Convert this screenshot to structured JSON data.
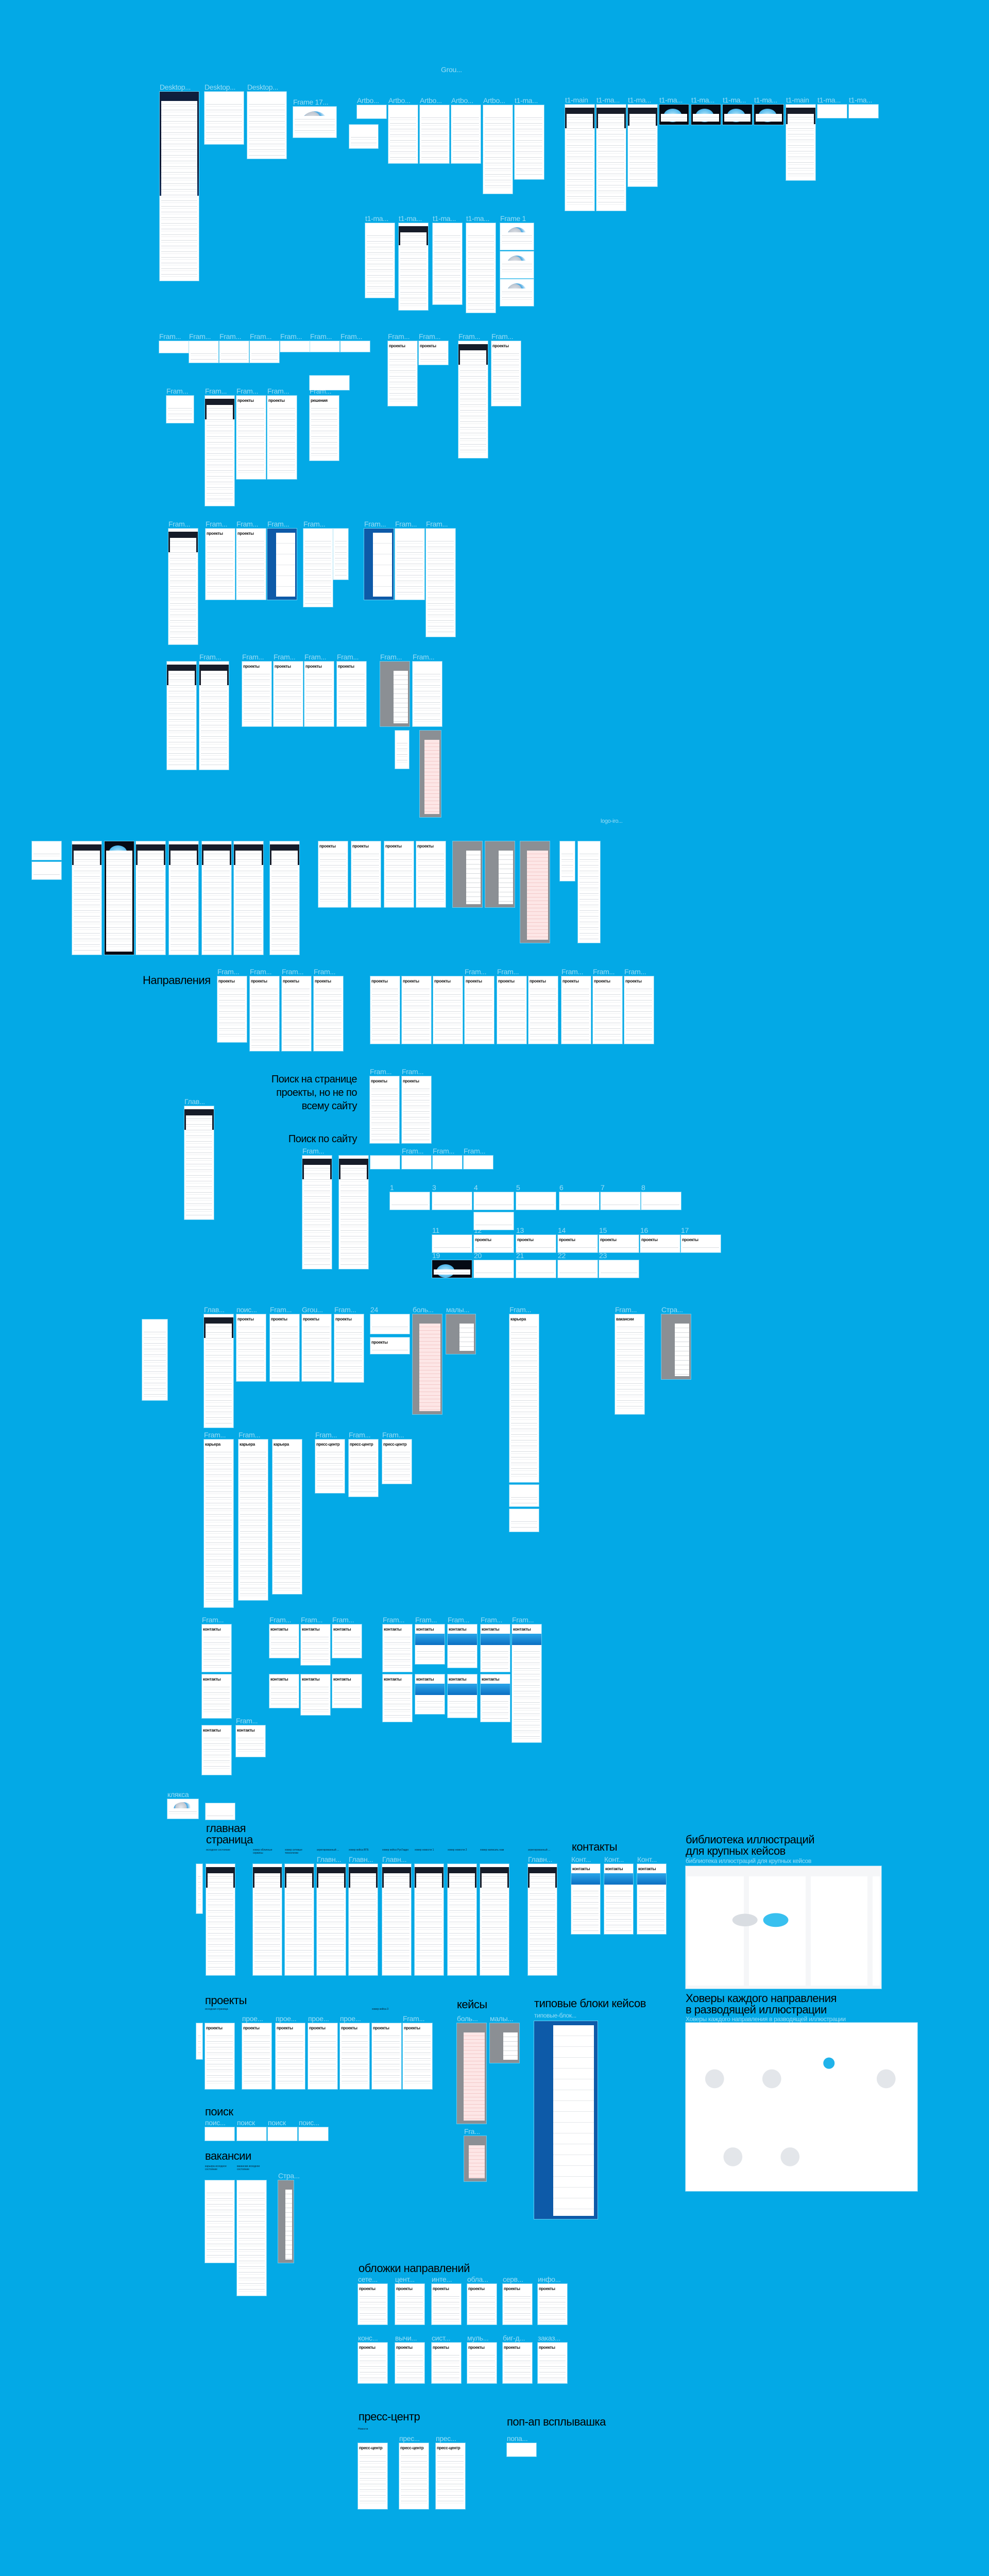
{
  "colors": {
    "canvas": "#03a9e6",
    "frame": "#ffffff",
    "accent": "#1fb0ec",
    "dark": "#0a1733"
  },
  "sections": {
    "directions": "Направления",
    "search_projects": [
      "Поиск на странице",
      "проекты, но не по",
      "всему сайту"
    ],
    "search_site": "Поиск по сайту",
    "home": [
      "главная",
      "страница"
    ],
    "contacts": "контакты",
    "library": [
      "библиотека иллюстраций",
      "для крупных кейсов"
    ],
    "library_frame": "библиотека иллюстраций для крупных кейсов",
    "hovers": [
      "Ховеры каждого направления",
      "в разводящей иллюстрации"
    ],
    "hovers_frame": "Ховеры каждого направления в разводящей иллюстрации",
    "projects": "проекты",
    "cases": "кейсы",
    "case_blocks": "типовые блоки кейсов",
    "case_blocks_frame": "типовые-блок...",
    "search": "поиск",
    "vacancies": "вакансии",
    "covers": "обложки направлений",
    "press": "пресс-центр",
    "popup": "поп-ап всплывашка",
    "group_label": "Grou...",
    "logo_label": "logo-iro..."
  },
  "frames": {
    "top": [
      {
        "label": "Desktop..."
      },
      {
        "label": "Desktop..."
      },
      {
        "label": "Desktop..."
      },
      {
        "label": "Frame 17..."
      },
      {
        "label": "Artbo..."
      },
      {
        "label": "Artbo..."
      },
      {
        "label": "Artbo..."
      },
      {
        "label": "Artbo..."
      },
      {
        "label": "Artbo..."
      },
      {
        "label": "t1-ma..."
      },
      {
        "label": "t1-main"
      },
      {
        "label": "t1-ma..."
      },
      {
        "label": "t1-ma..."
      },
      {
        "label": "t1-ma..."
      },
      {
        "label": "t1-ma..."
      },
      {
        "label": "t1-ma..."
      },
      {
        "label": "t1-ma..."
      },
      {
        "label": "t1-main"
      },
      {
        "label": "t1-ma..."
      },
      {
        "label": "t1-ma..."
      },
      {
        "label": ""
      }
    ],
    "row2": [
      {
        "label": "t1-ma..."
      },
      {
        "label": "t1-ma..."
      },
      {
        "label": "t1-ma..."
      },
      {
        "label": "t1-ma..."
      },
      {
        "label": "Frame 1"
      },
      {
        "label": ""
      },
      {
        "label": ""
      }
    ],
    "row3": [
      {
        "label": "Fram..."
      },
      {
        "label": "Fram..."
      },
      {
        "label": "Fram..."
      },
      {
        "label": "Fram..."
      },
      {
        "label": "Fram..."
      },
      {
        "label": "Fram..."
      },
      {
        "label": "Fram..."
      },
      {
        "label": "Fram...",
        "title": "проекты"
      },
      {
        "label": "Fram...",
        "title": "проекты"
      },
      {
        "label": "Fram..."
      },
      {
        "label": "Fram...",
        "title": "проекты"
      }
    ],
    "row4": [
      {
        "label": "Fram..."
      },
      {
        "label": "Fram..."
      },
      {
        "label": "Fram...",
        "title": "проекты"
      },
      {
        "label": "Fram...",
        "title": "проекты"
      },
      {
        "label": ""
      },
      {
        "label": "Fram...",
        "title": "решения"
      }
    ],
    "row5": [
      {
        "label": "Fram..."
      },
      {
        "label": "Fram...",
        "title": "проекты"
      },
      {
        "label": "Fram...",
        "title": "проекты"
      },
      {
        "label": "Fram..."
      },
      {
        "label": "Fram..."
      },
      {
        "label": ""
      },
      {
        "label": "Fram..."
      },
      {
        "label": "Fram..."
      },
      {
        "label": "Fram..."
      }
    ],
    "row6": [
      {
        "label": ""
      },
      {
        "label": "Fram..."
      },
      {
        "label": "Fram...",
        "title": "проекты"
      },
      {
        "label": "Fram...",
        "title": "проекты"
      },
      {
        "label": "Fram...",
        "title": "проекты"
      },
      {
        "label": "Fram...",
        "title": "проекты"
      },
      {
        "label": "Fram..."
      },
      {
        "label": "Fram..."
      },
      {
        "label": ""
      },
      {
        "label": ""
      }
    ],
    "row7": [
      {
        "label": ""
      },
      {
        "label": ""
      },
      {
        "label": ""
      },
      {
        "label": ""
      },
      {
        "label": ""
      },
      {
        "label": ""
      },
      {
        "label": ""
      },
      {
        "label": ""
      },
      {
        "label": ""
      },
      {
        "label": "",
        "title": "проекты"
      },
      {
        "label": "",
        "title": "проекты"
      },
      {
        "label": "",
        "title": "проекты"
      },
      {
        "label": "",
        "title": "проекты"
      },
      {
        "label": ""
      },
      {
        "label": ""
      },
      {
        "label": ""
      },
      {
        "label": ""
      },
      {
        "label": ""
      }
    ],
    "directions": [
      {
        "label": "Fram...",
        "title": "проекты"
      },
      {
        "label": "Fram...",
        "title": "проекты"
      },
      {
        "label": "Fram...",
        "title": "проекты"
      },
      {
        "label": "Fram...",
        "title": "проекты"
      },
      {
        "label": "",
        "title": "проекты"
      },
      {
        "label": "",
        "title": "проекты"
      },
      {
        "label": "",
        "title": "проекты"
      },
      {
        "label": "Fram...",
        "title": "проекты"
      },
      {
        "label": "Fram...",
        "title": "проекты"
      },
      {
        "label": "",
        "title": "проекты"
      },
      {
        "label": "Fram...",
        "title": "проекты"
      },
      {
        "label": "Fram...",
        "title": "проекты"
      },
      {
        "label": "Fram...",
        "title": "проекты"
      }
    ],
    "search_projects": [
      {
        "label": "Fram...",
        "title": "проекты"
      },
      {
        "label": "Fram...",
        "title": "проекты"
      },
      {
        "label": "Глав..."
      }
    ],
    "search_site": [
      {
        "label": "Fram..."
      },
      {
        "label": ""
      },
      {
        "label": ""
      },
      {
        "label": "Fram..."
      },
      {
        "label": "Fram..."
      },
      {
        "label": "Fram..."
      }
    ],
    "numbered": [
      {
        "label": "1"
      },
      {
        "label": "3"
      },
      {
        "label": "4"
      },
      {
        "label": "5"
      },
      {
        "label": "6"
      },
      {
        "label": "7"
      },
      {
        "label": "8"
      },
      {
        "label": ""
      },
      {
        "label": "11"
      },
      {
        "label": "12",
        "title": "проекты"
      },
      {
        "label": "13",
        "title": "проекты"
      },
      {
        "label": "14",
        "title": "проекты"
      },
      {
        "label": "15",
        "title": "проекты"
      },
      {
        "label": "16",
        "title": "проекты"
      },
      {
        "label": "17",
        "title": "проекты"
      },
      {
        "label": "19"
      },
      {
        "label": "20"
      },
      {
        "label": "21"
      },
      {
        "label": "22"
      },
      {
        "label": "23"
      }
    ],
    "row8": [
      {
        "label": ""
      },
      {
        "label": "Глав..."
      },
      {
        "label": "поис...",
        "title": "проекты"
      },
      {
        "label": "Fram...",
        "title": "проекты"
      },
      {
        "label": "Grou...",
        "title": "проекты"
      },
      {
        "label": "Fram...",
        "title": "проекты"
      },
      {
        "label": "24"
      },
      {
        "label": "",
        "title": "проекты"
      },
      {
        "label": "боль..."
      },
      {
        "label": "малы..."
      },
      {
        "label": "Fram...",
        "title": "карьера"
      },
      {
        "label": "Fram...",
        "title": "вакансии"
      },
      {
        "label": "Стра..."
      }
    ],
    "row9": [
      {
        "label": "Fram...",
        "title": "карьера"
      },
      {
        "label": "Fram...",
        "title": "карьера"
      },
      {
        "label": "",
        "title": "карьера"
      },
      {
        "label": "Fram...",
        "title": "пресс-центр"
      },
      {
        "label": "Fram...",
        "title": "пресс-центр"
      },
      {
        "label": "Fram...",
        "title": "пресс-центр"
      },
      {
        "label": ""
      },
      {
        "label": ""
      }
    ],
    "contacts_rows": [
      {
        "label": "Fram...",
        "title": "контакты"
      },
      {
        "label": "Fram...",
        "title": "контакты"
      },
      {
        "label": "Fram...",
        "title": "контакты"
      },
      {
        "label": "Fram...",
        "title": "контакты"
      },
      {
        "label": "Fram...",
        "title": "контакты"
      },
      {
        "label": "Fram...",
        "title": "контакты"
      },
      {
        "label": "Fram...",
        "title": "контакты"
      },
      {
        "label": "Fram...",
        "title": "контакты"
      },
      {
        "label": "Fram...",
        "title": "контакты"
      },
      {
        "label": "",
        "title": "контакты"
      },
      {
        "label": "",
        "title": "контакты"
      },
      {
        "label": "",
        "title": "контакты"
      },
      {
        "label": "",
        "title": "контакты"
      },
      {
        "label": "",
        "title": "контакты"
      },
      {
        "label": "",
        "title": "контакты"
      },
      {
        "label": "",
        "title": "контакты"
      },
      {
        "label": "",
        "title": "контакты"
      },
      {
        "label": "",
        "title": "контакты"
      },
      {
        "label": "Fram...",
        "title": "контакты"
      },
      {
        "label": "клякса"
      },
      {
        "label": ""
      }
    ],
    "home": [
      {
        "label": "",
        "caption": ""
      },
      {
        "label": "",
        "caption": "исходное состояние"
      },
      {
        "label": "",
        "caption": "ховер облачные сервисы"
      },
      {
        "label": "",
        "caption": "ховер сетевые технологии"
      },
      {
        "label": "Главн...",
        "caption": "агрегированный ..."
      },
      {
        "label": "Главн...",
        "caption": "ховер кейса ВТБ"
      },
      {
        "label": "Главн...",
        "caption": "ховер кейса РусГидро"
      },
      {
        "label": "",
        "caption": "ховер новости 1"
      },
      {
        "label": "",
        "caption": "ховер новости 2"
      },
      {
        "label": "",
        "caption": "ховер написать нам"
      },
      {
        "label": "Главн...",
        "caption": "агрегированный ..."
      }
    ],
    "contacts": [
      {
        "label": "Конт...",
        "title": "контакты"
      },
      {
        "label": "Конт...",
        "title": "контакты"
      },
      {
        "label": "Конт...",
        "title": "контакты"
      }
    ],
    "library": [
      {
        "label": ""
      }
    ],
    "hovers": [
      {
        "label": ""
      }
    ],
    "projects": [
      {
        "label": "",
        "caption": ""
      },
      {
        "label": "",
        "caption": "исходная страница",
        "title": "проекты"
      },
      {
        "label": "прое...",
        "title": "проекты"
      },
      {
        "label": "прое...",
        "title": "проекты"
      },
      {
        "label": "прое...",
        "title": "проекты"
      },
      {
        "label": "прое...",
        "title": "проекты"
      },
      {
        "label": "",
        "caption": "ховер кейса 3",
        "title": "проекты"
      },
      {
        "label": "Fram...",
        "title": "проекты"
      }
    ],
    "cases": [
      {
        "label": "боль..."
      },
      {
        "label": "малы..."
      },
      {
        "label": "Fra..."
      }
    ],
    "case_blocks": [
      {
        "label": ""
      }
    ],
    "search": [
      {
        "label": "поис..."
      },
      {
        "label": "поиск"
      },
      {
        "label": "поиск"
      },
      {
        "label": "поис..."
      }
    ],
    "vacancies": [
      {
        "label": "",
        "caption": "карьера исходное состояние"
      },
      {
        "label": "",
        "caption": "вакансии исходное состояние"
      },
      {
        "label": "Стра..."
      }
    ],
    "covers": [
      {
        "label": "сете...",
        "title": "проекты"
      },
      {
        "label": "цент...",
        "title": "проекты"
      },
      {
        "label": "инте...",
        "title": "проекты"
      },
      {
        "label": "обла...",
        "title": "проекты"
      },
      {
        "label": "серв...",
        "title": "проекты"
      },
      {
        "label": "инфо...",
        "title": "проекты"
      },
      {
        "label": "конс...",
        "title": "проекты"
      },
      {
        "label": "вычи...",
        "title": "проекты"
      },
      {
        "label": "сист...",
        "title": "проекты"
      },
      {
        "label": "муль...",
        "title": "проекты"
      },
      {
        "label": "биг-д...",
        "title": "проекты"
      },
      {
        "label": "заказ...",
        "title": "проекты"
      }
    ],
    "press": [
      {
        "label": "",
        "caption": "Новости",
        "title": "пресс-центр"
      },
      {
        "label": "прес...",
        "title": "пресс-центр"
      },
      {
        "label": "прес...",
        "title": "пресс-центр"
      }
    ],
    "popup": [
      {
        "label": "попа..."
      }
    ]
  }
}
